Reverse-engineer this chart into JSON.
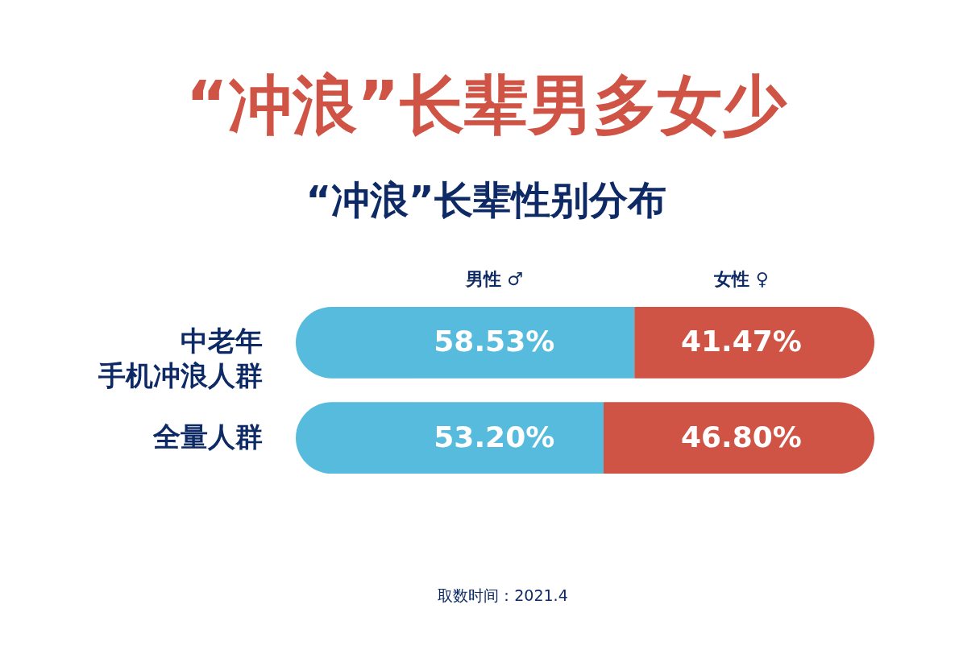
{
  "chart_data": {
    "type": "bar",
    "orientation": "horizontal",
    "stacked": true,
    "title": "“冲浪”长辈男多女少",
    "subtitle": "“冲浪”长辈性别分布",
    "categories": [
      "中老年手机冲浪人群",
      "全量人群"
    ],
    "series": [
      {
        "name": "男性 ♂",
        "color": "#56bbdc",
        "values": [
          58.53,
          53.2
        ],
        "value_labels": [
          "58.53%",
          "53.20%"
        ]
      },
      {
        "name": "女性 ♀",
        "color": "#cf5446",
        "values": [
          41.47,
          46.8
        ],
        "value_labels": [
          "41.47%",
          "46.80%"
        ]
      }
    ],
    "legend": "top",
    "tick_labels": "y",
    "annotations": [
      "取数时间：2021.4"
    ]
  }
}
